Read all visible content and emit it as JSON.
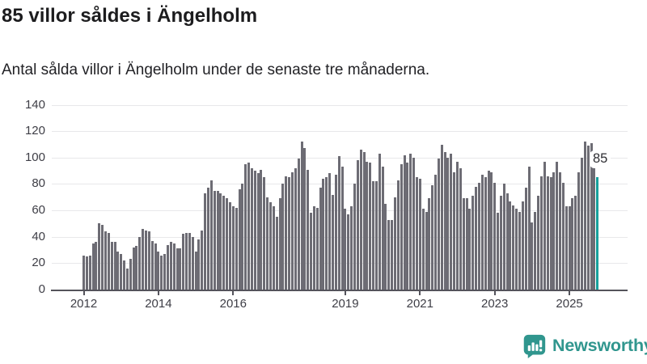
{
  "header": {
    "title": "85 villor såldes i Ängelholm",
    "subtitle": "Antal sålda villor i Ängelholm under de senaste tre månaderna."
  },
  "chart_data": {
    "type": "bar",
    "title": "85 villor såldes i Ängelholm",
    "subtitle": "Antal sålda villor i Ängelholm under de senaste tre månaderna.",
    "xlabel": "",
    "ylabel": "",
    "x_start": "2012-01",
    "x_end": "2025-10",
    "x_unit": "month",
    "values": [
      26,
      25,
      26,
      35,
      36,
      50,
      49,
      44,
      43,
      36,
      36,
      29,
      27,
      22,
      16,
      23,
      32,
      33,
      40,
      46,
      45,
      44,
      37,
      35,
      29,
      26,
      27,
      34,
      36,
      35,
      31,
      31,
      42,
      43,
      43,
      40,
      29,
      38,
      45,
      73,
      77,
      83,
      75,
      75,
      73,
      71,
      69,
      66,
      63,
      62,
      76,
      80,
      95,
      96,
      92,
      90,
      88,
      91,
      85,
      70,
      66,
      63,
      55,
      69,
      80,
      86,
      85,
      89,
      92,
      99,
      112,
      107,
      91,
      58,
      63,
      62,
      77,
      84,
      85,
      88,
      72,
      87,
      101,
      93,
      61,
      57,
      63,
      80,
      98,
      106,
      104,
      97,
      96,
      82,
      82,
      103,
      93,
      65,
      53,
      53,
      70,
      83,
      95,
      102,
      96,
      103,
      100,
      85,
      84,
      61,
      59,
      69,
      79,
      87,
      99,
      110,
      104,
      100,
      103,
      89,
      97,
      92,
      69,
      69,
      61,
      71,
      78,
      81,
      87,
      85,
      90,
      89,
      81,
      58,
      71,
      80,
      73,
      67,
      64,
      61,
      59,
      67,
      77,
      93,
      51,
      59,
      71,
      86,
      97,
      86,
      85,
      89,
      97,
      89,
      81,
      63,
      63,
      69,
      71,
      89,
      100,
      112,
      109,
      111,
      95,
      85
    ],
    "highlight_last": true,
    "highlight_label": "85",
    "highlight_value": 85,
    "yticks": [
      0,
      20,
      40,
      60,
      80,
      100,
      120,
      140
    ],
    "ylim": [
      0,
      140
    ],
    "xticks": [
      {
        "label": "2012",
        "month_index": 0
      },
      {
        "label": "2014",
        "month_index": 24
      },
      {
        "label": "2016",
        "month_index": 48
      },
      {
        "label": "2019",
        "month_index": 84
      },
      {
        "label": "2021",
        "month_index": 108
      },
      {
        "label": "2023",
        "month_index": 132
      },
      {
        "label": "2025",
        "month_index": 156
      }
    ],
    "grid": true,
    "legend": false,
    "bar_color": "#6d6c74",
    "highlight_color": "#16a09c",
    "grid_color": "#e8e8ea",
    "axis_color": "#54535b",
    "label_color": "#3e3e46"
  },
  "footer": {
    "brand": "Newsworthy",
    "brand_color": "#30968e",
    "logo_icon": "bar-chart-speech-bubble"
  }
}
